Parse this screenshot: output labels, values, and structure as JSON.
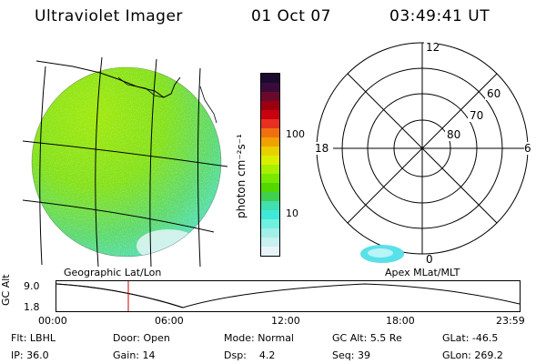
{
  "header": {
    "title": "Ultraviolet Imager",
    "date": "01 Oct 07",
    "time": "03:49:41 UT"
  },
  "colorbar": {
    "unit_label": "photon cm⁻²s⁻¹",
    "ticks": [
      "100",
      "10"
    ],
    "colors": [
      "#1a0a2e",
      "#3a0a3a",
      "#6a0a2a",
      "#9a0010",
      "#c80010",
      "#e83020",
      "#f07010",
      "#f0a000",
      "#e8d000",
      "#d8f000",
      "#a8f000",
      "#78e800",
      "#50d800",
      "#40d050",
      "#40e0b0",
      "#40e8d8",
      "#70f0e0",
      "#a0f0e8",
      "#c8f0f0",
      "#e8f4f8"
    ]
  },
  "polar": {
    "mlt_labels": {
      "top": "12",
      "left": "18",
      "right": "6",
      "bottom": "0"
    },
    "lat_labels": [
      "60",
      "70",
      "80"
    ]
  },
  "labels": {
    "geographic": "Geographic Lat/Lon",
    "apex": "Apex MLat/MLT",
    "gc_alt_axis": "GC Alt",
    "alt_max": "9.0",
    "alt_min": "1.8"
  },
  "timeline": {
    "ticks": [
      "00:00",
      "06:00",
      "12:00",
      "18:00",
      "23:59"
    ]
  },
  "info": {
    "row1": [
      {
        "label": "Flt:",
        "value": "LBHL"
      },
      {
        "label": "Door:",
        "value": "Open"
      },
      {
        "label": "Mode:",
        "value": "Normal"
      },
      {
        "label": "GC Alt:",
        "value": "5.5 Re"
      },
      {
        "label": "GLat:",
        "value": "-46.5"
      }
    ],
    "row2": [
      {
        "label": "IP:",
        "value": "36.0"
      },
      {
        "label": "Gain:",
        "value": "14"
      },
      {
        "label": "Dsp:",
        "value": "4.2"
      },
      {
        "label": "Seq:",
        "value": "39"
      },
      {
        "label": "GLon:",
        "value": "269.2"
      }
    ]
  }
}
